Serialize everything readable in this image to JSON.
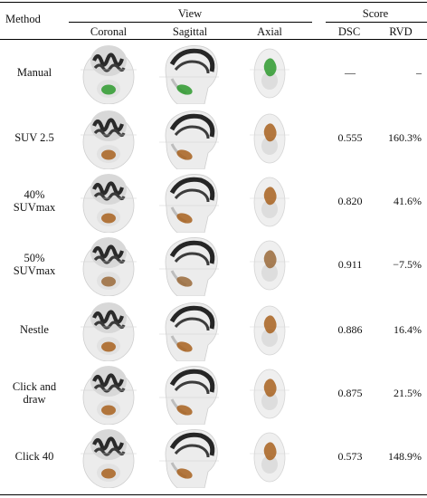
{
  "table": {
    "header": {
      "method": "Method",
      "view": "View",
      "score": "Score",
      "coronal": "Coronal",
      "sagittal": "Sagittal",
      "axial": "Axial",
      "dsc": "DSC",
      "rvd": "RVD"
    },
    "rows": [
      {
        "method": "Manual",
        "dsc": "—",
        "rvd": "–",
        "roi_color": "#2e9a2e"
      },
      {
        "method": "SUV 2.5",
        "dsc": "0.555",
        "rvd": "160.3%",
        "roi_color": "#a8621e"
      },
      {
        "method": "40% SUVmax",
        "dsc": "0.820",
        "rvd": "41.6%",
        "roi_color": "#a8621e"
      },
      {
        "method": "50% SUVmax",
        "dsc": "0.911",
        "rvd": "−7.5%",
        "roi_color": "#9a6a3a"
      },
      {
        "method": "Nestle",
        "dsc": "0.886",
        "rvd": "16.4%",
        "roi_color": "#a8621e"
      },
      {
        "method": "Click and draw",
        "dsc": "0.875",
        "rvd": "21.5%",
        "roi_color": "#a8621e"
      },
      {
        "method": "Click 40",
        "dsc": "0.573",
        "rvd": "148.9%",
        "roi_color": "#a8621e"
      }
    ]
  }
}
